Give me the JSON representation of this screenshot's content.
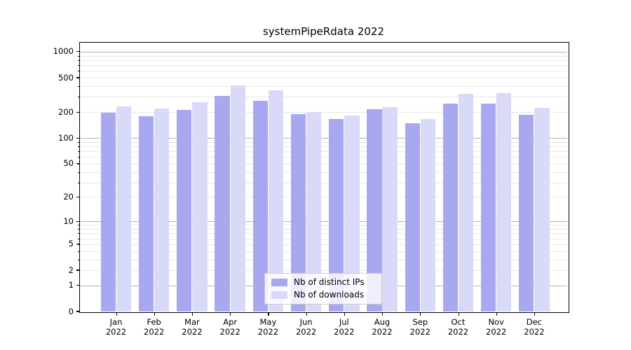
{
  "chart_data": {
    "type": "bar",
    "title": "systemPipeRdata 2022",
    "categories": [
      "Jan",
      "Feb",
      "Mar",
      "Apr",
      "May",
      "Jun",
      "Jul",
      "Aug",
      "Sep",
      "Oct",
      "Nov",
      "Dec"
    ],
    "category_year_line": "2022",
    "series": [
      {
        "name": "Nb of distinct IPs",
        "color": "#a8a8f0",
        "values": [
          195,
          180,
          212,
          310,
          270,
          189,
          165,
          216,
          150,
          253,
          250,
          185
        ]
      },
      {
        "name": "Nb of downloads",
        "color": "#d9d9f8",
        "values": [
          235,
          220,
          262,
          405,
          358,
          202,
          181,
          228,
          166,
          327,
          334,
          225
        ]
      }
    ],
    "yscale": "log1p",
    "y_ticks": [
      0,
      1,
      2,
      5,
      10,
      20,
      50,
      100,
      200,
      500,
      1000
    ],
    "ylim": [
      0,
      1250
    ],
    "grid": {
      "major_values": [
        1,
        10,
        100,
        1000
      ],
      "minor_values": [
        2,
        3,
        4,
        5,
        6,
        7,
        8,
        9,
        20,
        30,
        40,
        50,
        60,
        70,
        80,
        90,
        200,
        300,
        400,
        500,
        600,
        700,
        800,
        900
      ]
    },
    "legend_position": "bottom-center",
    "colors": {
      "background": "#ffffff",
      "axis": "#000000",
      "major_grid": "#b3b3b3",
      "minor_grid": "#e7e7e7",
      "legend_border": "#cccccc"
    }
  }
}
